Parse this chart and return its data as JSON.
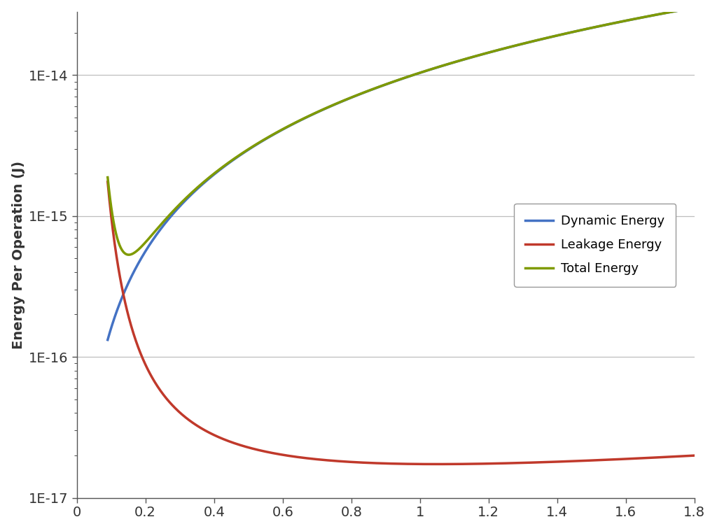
{
  "title": "",
  "xlabel": "",
  "ylabel": "Energy Per Operation (J)",
  "xlim": [
    0,
    1.8
  ],
  "ylim_log_min": -17,
  "ylim_log_max": -13.55,
  "yticks": [
    1e-17,
    1e-16,
    1e-15,
    1e-14
  ],
  "ytick_labels": [
    "1E-17",
    "1E-16",
    "1E-15",
    "1E-14"
  ],
  "xticks": [
    0,
    0.2,
    0.4,
    0.6,
    0.8,
    1.0,
    1.2,
    1.4,
    1.6,
    1.8
  ],
  "xtick_labels": [
    "0",
    "0.2",
    "0.4",
    "0.6",
    "0.8",
    "1",
    "1.2",
    "1.4",
    "1.6",
    "1.8"
  ],
  "dynamic_color": "#4472C4",
  "leakage_color": "#C0392B",
  "total_color": "#7F9A00",
  "line_width": 2.5,
  "legend_entries": [
    "Dynamic Energy",
    "Leakage Energy",
    "Total Energy"
  ],
  "background_color": "#FFFFFF",
  "grid_color": "#BEBEBE",
  "x_start": 0.09,
  "x_end": 1.8,
  "A_dyn": 1.6e-14,
  "n_dyn": 2.0,
  "a_leak": -14.631,
  "b_leak": -3.849,
  "c_leak": 1.58
}
